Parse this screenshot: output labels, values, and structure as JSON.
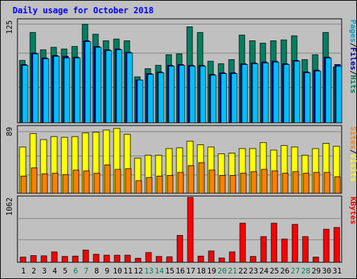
{
  "chart_data": {
    "type": "bar",
    "title": "Daily usage for October 2018",
    "categories": [
      "1",
      "2",
      "3",
      "4",
      "5",
      "6",
      "7",
      "8",
      "9",
      "10",
      "11",
      "12",
      "13",
      "14",
      "15",
      "16",
      "17",
      "18",
      "19",
      "20",
      "21",
      "22",
      "23",
      "24",
      "25",
      "26",
      "27",
      "28",
      "29",
      "30",
      "31"
    ],
    "weekend_days": [
      "6",
      "7",
      "13",
      "14",
      "20",
      "21",
      "27",
      "28"
    ],
    "panels": [
      {
        "name": "hits-files-pages",
        "ymax_label": "125",
        "ymax": 125,
        "legend": [
          {
            "text": "Pages",
            "color": "#00a0d0"
          },
          {
            "text": "/",
            "color": "#000000"
          },
          {
            "text": "Files",
            "color": "#0000c0"
          },
          {
            "text": "/",
            "color": "#000000"
          },
          {
            "text": "Hits",
            "color": "#008060"
          }
        ],
        "series": [
          {
            "name": "Hits",
            "color": "#008060",
            "values": [
              76,
              110,
              89,
              92,
              90,
              93,
              120,
              108,
              100,
              102,
              100,
              56,
              66,
              70,
              83,
              84,
              117,
              110,
              75,
              72,
              77,
              107,
              100,
              97,
              100,
              101,
              106,
              77,
              83,
              110,
              68
            ]
          },
          {
            "name": "Files",
            "color": "#0000c0",
            "values": [
              71,
              85,
              79,
              82,
              81,
              80,
              100,
              93,
              89,
              90,
              86,
              52,
              60,
              62,
              70,
              71,
              70,
              70,
              59,
              61,
              61,
              72,
              73,
              74,
              75,
              72,
              76,
              62,
              64,
              80,
              71
            ]
          },
          {
            "name": "Pages",
            "color": "#00c0ff",
            "values": [
              70,
              84,
              78,
              81,
              79,
              79,
              99,
              92,
              88,
              89,
              85,
              52,
              59,
              61,
              69,
              70,
              69,
              69,
              58,
              60,
              60,
              71,
              72,
              73,
              74,
              71,
              75,
              61,
              63,
              79,
              69
            ]
          }
        ]
      },
      {
        "name": "visits-sites",
        "ymax_label": "89",
        "ymax": 89,
        "legend": [
          {
            "text": "Sites",
            "color": "#ff8000"
          },
          {
            "text": "/",
            "color": "#000000"
          },
          {
            "text": "Visits",
            "color": "#ffff00"
          }
        ],
        "series": [
          {
            "name": "Visits",
            "color": "#ffff00",
            "values": [
              62,
              80,
              72,
              76,
              75,
              76,
              81,
              82,
              85,
              87,
              79,
              47,
              51,
              51,
              60,
              61,
              70,
              65,
              62,
              53,
              54,
              60,
              60,
              68,
              58,
              64,
              62,
              51,
              60,
              67,
              63
            ]
          },
          {
            "name": "Sites",
            "color": "#ff8000",
            "values": [
              23,
              34,
              26,
              27,
              25,
              31,
              30,
              27,
              38,
              32,
              33,
              17,
              21,
              23,
              24,
              28,
              37,
              41,
              31,
              24,
              24,
              27,
              29,
              32,
              30,
              27,
              29,
              27,
              28,
              28,
              22
            ]
          }
        ]
      },
      {
        "name": "kbytes",
        "ymax_label": "1062",
        "ymax": 1062,
        "legend": [
          {
            "text": "KBytes",
            "color": "#ff0000"
          }
        ],
        "series": [
          {
            "name": "KBytes",
            "color": "#ff0000",
            "values": [
              85,
              110,
              105,
              170,
              95,
              100,
              200,
              130,
              115,
              115,
              115,
              65,
              160,
              95,
              90,
              440,
              1062,
              100,
              185,
              70,
              170,
              640,
              95,
              420,
              640,
              380,
              620,
              420,
              85,
              540,
              570
            ]
          }
        ]
      }
    ],
    "colors": {
      "background": "#c0c0c0",
      "plot_background": "#c0c0c0",
      "title": "#0000ff",
      "axis_text": "#000000",
      "weekend_text": "#00805c"
    }
  }
}
